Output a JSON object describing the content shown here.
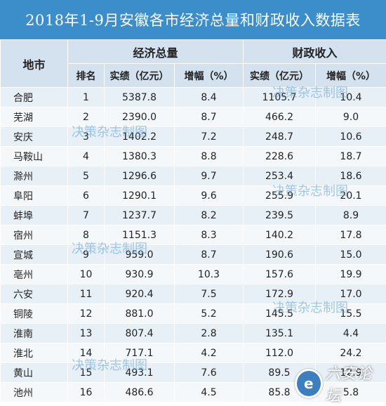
{
  "title": "2018年1-9月安徽各市经济总量和财政收入数据表",
  "headers": {
    "region": "地市",
    "economy": "经济总量",
    "revenue": "财政收入",
    "rank": "排名",
    "actual": "实绩（亿元）",
    "growth": "增幅（%）"
  },
  "rows": [
    {
      "city": "合肥",
      "rank": "1",
      "gdp": "5387.8",
      "gdp_growth": "8.4",
      "rev": "1105.7",
      "rev_growth": "10.4"
    },
    {
      "city": "芜湖",
      "rank": "2",
      "gdp": "2390.0",
      "gdp_growth": "8.7",
      "rev": "466.2",
      "rev_growth": "9.0"
    },
    {
      "city": "安庆",
      "rank": "3",
      "gdp": "1402.2",
      "gdp_growth": "7.2",
      "rev": "248.7",
      "rev_growth": "10.6"
    },
    {
      "city": "马鞍山",
      "rank": "4",
      "gdp": "1380.3",
      "gdp_growth": "8.8",
      "rev": "228.6",
      "rev_growth": "18.7"
    },
    {
      "city": "滁州",
      "rank": "5",
      "gdp": "1296.6",
      "gdp_growth": "9.7",
      "rev": "253.4",
      "rev_growth": "18.6"
    },
    {
      "city": "阜阳",
      "rank": "6",
      "gdp": "1290.1",
      "gdp_growth": "9.6",
      "rev": "255.9",
      "rev_growth": "20.1"
    },
    {
      "city": "蚌埠",
      "rank": "7",
      "gdp": "1237.7",
      "gdp_growth": "8.2",
      "rev": "239.5",
      "rev_growth": "8.9"
    },
    {
      "city": "宿州",
      "rank": "8",
      "gdp": "1151.3",
      "gdp_growth": "8.3",
      "rev": "140.2",
      "rev_growth": "17.8"
    },
    {
      "city": "宣城",
      "rank": "9",
      "gdp": "959.0",
      "gdp_growth": "8.7",
      "rev": "190.6",
      "rev_growth": "15.0"
    },
    {
      "city": "亳州",
      "rank": "10",
      "gdp": "930.9",
      "gdp_growth": "10.3",
      "rev": "157.6",
      "rev_growth": "19.9"
    },
    {
      "city": "六安",
      "rank": "11",
      "gdp": "920.4",
      "gdp_growth": "7.5",
      "rev": "172.9",
      "rev_growth": "17.0"
    },
    {
      "city": "铜陵",
      "rank": "12",
      "gdp": "881.0",
      "gdp_growth": "5.2",
      "rev": "145.5",
      "rev_growth": "15.5"
    },
    {
      "city": "淮南",
      "rank": "13",
      "gdp": "807.4",
      "gdp_growth": "2.8",
      "rev": "135.1",
      "rev_growth": "4.4"
    },
    {
      "city": "淮北",
      "rank": "14",
      "gdp": "717.1",
      "gdp_growth": "4.2",
      "rev": "112.0",
      "rev_growth": "24.2"
    },
    {
      "city": "黄山",
      "rank": "15",
      "gdp": "493.1",
      "gdp_growth": "7.6",
      "rev": "89.5",
      "rev_growth": "12.9"
    },
    {
      "city": "池州",
      "rank": "16",
      "gdp": "486.6",
      "gdp_growth": "4.5",
      "rev": "85.8",
      "rev_growth": "5.8"
    }
  ],
  "watermark": "决策杂志制图",
  "logo": {
    "icon_char": "e",
    "text": "六安论坛"
  }
}
